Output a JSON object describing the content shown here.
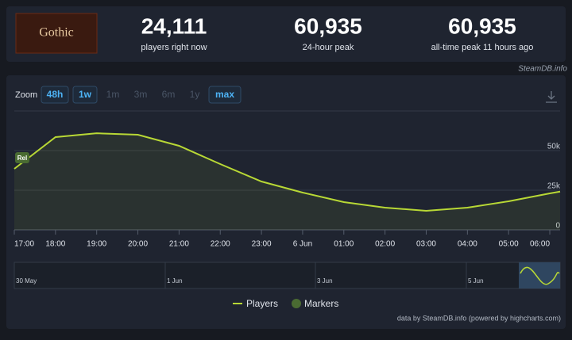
{
  "header": {
    "logo_text": "Gothic",
    "stats": [
      {
        "value": "24,111",
        "label": "players right now"
      },
      {
        "value": "60,935",
        "label": "24-hour peak"
      },
      {
        "value": "60,935",
        "label": "all-time peak 11 hours ago"
      }
    ],
    "source": "SteamDB.info"
  },
  "zoom": {
    "label": "Zoom",
    "buttons": [
      "48h",
      "1w",
      "1m",
      "3m",
      "6m",
      "1y",
      "max"
    ]
  },
  "navigator": {
    "labels": [
      "30 May",
      "1 Jun",
      "3 Jun",
      "5 Jun"
    ]
  },
  "marker_label": "Rel",
  "credits": "data by SteamDB.info (powered by highcharts.com)",
  "chart_data": {
    "type": "line",
    "x": [
      0,
      1,
      2,
      3,
      4,
      5,
      6,
      7,
      8,
      9,
      10,
      11,
      12,
      13,
      13.25
    ],
    "xlim": [
      0,
      13.25
    ],
    "xticks": [
      {
        "value": 0,
        "label": "17:00"
      },
      {
        "value": 1,
        "label": "18:00"
      },
      {
        "value": 2,
        "label": "19:00"
      },
      {
        "value": 3,
        "label": "20:00"
      },
      {
        "value": 4,
        "label": "21:00"
      },
      {
        "value": 5,
        "label": "22:00"
      },
      {
        "value": 6,
        "label": "23:00"
      },
      {
        "value": 7,
        "label": "6 Jun"
      },
      {
        "value": 8,
        "label": "01:00"
      },
      {
        "value": 9,
        "label": "02:00"
      },
      {
        "value": 10,
        "label": "03:00"
      },
      {
        "value": 11,
        "label": "04:00"
      },
      {
        "value": 12,
        "label": "05:00"
      },
      {
        "value": 13,
        "label": "06:00"
      }
    ],
    "ylim": [
      0,
      75000
    ],
    "yticks": [
      0,
      {
        "value": 25000,
        "label": "25k"
      },
      {
        "value": 50000,
        "label": "50k"
      }
    ],
    "grid": true,
    "legend": [
      "Markers"
    ],
    "series": [
      {
        "name": "Players",
        "color": "#b8d835",
        "values": [
          38500,
          58500,
          60935,
          60000,
          53000,
          41500,
          30500,
          23500,
          17500,
          14000,
          12000,
          14000,
          18000,
          23000,
          24111
        ]
      }
    ]
  }
}
